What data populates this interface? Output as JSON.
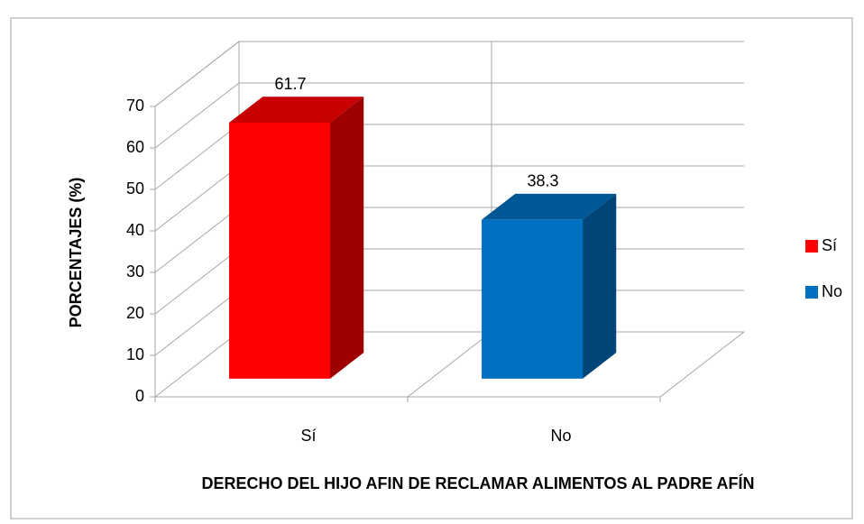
{
  "chart_data": {
    "type": "bar3d",
    "categories": [
      "Sí",
      "No"
    ],
    "values": [
      61.7,
      38.3
    ],
    "colors": [
      "#ff0000",
      "#0070c0"
    ],
    "ylim": [
      0,
      70
    ],
    "yticks": [
      0,
      10,
      20,
      30,
      40,
      50,
      60,
      70
    ],
    "grid": true,
    "legend": "right",
    "xlabel": "DERECHO DEL HIJO AFIN DE RECLAMAR ALIMENTOS AL PADRE AFÍN",
    "ylabel": "PORCENTAJES (%)"
  }
}
